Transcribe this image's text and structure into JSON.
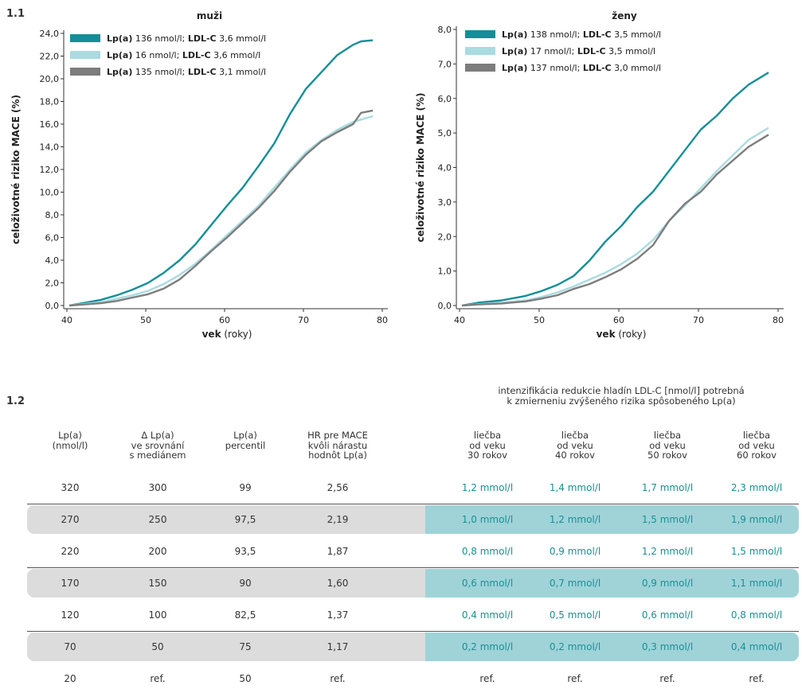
{
  "figure_labels": {
    "part1": "1.1",
    "part2": "1.2"
  },
  "chart_data": [
    {
      "type": "line",
      "title": "muži",
      "xlabel_bold": "vek",
      "xlabel_rest": " (roky)",
      "ylabel": "celoživotné riziko MACE (%)",
      "xlim": [
        40,
        80
      ],
      "ylim": [
        0,
        24
      ],
      "x_ticks": [
        "40",
        "50",
        "60",
        "70",
        "80"
      ],
      "y_ticks": [
        "0,0",
        "2,0",
        "4,0",
        "6,0",
        "8,0",
        "10,0",
        "12,0",
        "14,0",
        "16,0",
        "18,0",
        "20,0",
        "22,0",
        "24,0"
      ],
      "legend_position": "top-left",
      "legend": [
        {
          "lpa_label": "Lp(a)",
          "lpa_value": " 136 nmol/l; ",
          "ldl_label": "LDL-C",
          "ldl_value": " 3,6 mmol/l"
        },
        {
          "lpa_label": "Lp(a)",
          "lpa_value": " 16 nmol/l; ",
          "ldl_label": "LDL-C",
          "ldl_value": " 3,6 mmol/l"
        },
        {
          "lpa_label": "Lp(a)",
          "lpa_value": " 135 nmol/l; ",
          "ldl_label": "LDL-C",
          "ldl_value": " 3,1 mmol/l"
        }
      ],
      "series": [
        {
          "color": "#138f98",
          "x": [
            40,
            44,
            46,
            48,
            50,
            52,
            54,
            56,
            58,
            60,
            62,
            64,
            66,
            68,
            70,
            72,
            74,
            76,
            77,
            78.5
          ],
          "y": [
            0,
            0.5,
            0.9,
            1.4,
            2.0,
            2.9,
            4.0,
            5.4,
            7.1,
            8.8,
            10.4,
            12.3,
            14.3,
            16.9,
            19.1,
            20.6,
            22.1,
            23.0,
            23.3,
            23.4
          ]
        },
        {
          "color": "#a9dbe0",
          "x": [
            40,
            44,
            46,
            48,
            50,
            52,
            54,
            56,
            58,
            60,
            62,
            64,
            66,
            68,
            70,
            72,
            74,
            76,
            78.5
          ],
          "y": [
            0,
            0.3,
            0.6,
            0.9,
            1.3,
            1.9,
            2.7,
            3.7,
            4.9,
            6.2,
            7.5,
            8.8,
            10.4,
            12.0,
            13.5,
            14.6,
            15.5,
            16.2,
            16.7
          ]
        },
        {
          "color": "#7d7d7d",
          "x": [
            40,
            44,
            46,
            48,
            50,
            52,
            54,
            56,
            58,
            60,
            62,
            64,
            66,
            68,
            70,
            72,
            74,
            76,
            77,
            78.5
          ],
          "y": [
            0,
            0.2,
            0.4,
            0.7,
            1.0,
            1.5,
            2.3,
            3.5,
            4.8,
            6.0,
            7.3,
            8.6,
            10.1,
            11.8,
            13.3,
            14.5,
            15.3,
            16.0,
            17.0,
            17.2
          ]
        }
      ]
    },
    {
      "type": "line",
      "title": "ženy",
      "xlabel_bold": "vek",
      "xlabel_rest": " (roky)",
      "ylabel": "celoživotné riziko MACE (%)",
      "xlim": [
        40,
        80
      ],
      "ylim": [
        0,
        8
      ],
      "x_ticks": [
        "40",
        "50",
        "60",
        "70",
        "80"
      ],
      "y_ticks": [
        "0,0",
        "1,0",
        "2,0",
        "3,0",
        "4,0",
        "5,0",
        "6,0",
        "7,0",
        "8,0"
      ],
      "legend_position": "top-left",
      "legend": [
        {
          "lpa_label": "Lp(a)",
          "lpa_value": " 138 nmol/l; ",
          "ldl_label": "LDL-C",
          "ldl_value": " 3,5 mmol/l"
        },
        {
          "lpa_label": "Lp(a)",
          "lpa_value": " 17 nmol/l; ",
          "ldl_label": "LDL-C",
          "ldl_value": " 3,5 mmol/l"
        },
        {
          "lpa_label": "Lp(a)",
          "lpa_value": " 137 nmol/l; ",
          "ldl_label": "LDL-C",
          "ldl_value": " 3,0 mmol/l"
        }
      ],
      "series": [
        {
          "color": "#138f98",
          "x": [
            40,
            42,
            45,
            48,
            50,
            52,
            54,
            56,
            58,
            60,
            62,
            64,
            66,
            68,
            70,
            72,
            74,
            76,
            78.5
          ],
          "y": [
            0,
            0.08,
            0.15,
            0.28,
            0.42,
            0.6,
            0.85,
            1.3,
            1.85,
            2.3,
            2.85,
            3.3,
            3.9,
            4.5,
            5.1,
            5.5,
            6.0,
            6.4,
            6.75
          ]
        },
        {
          "color": "#a9dbe0",
          "x": [
            40,
            42,
            45,
            48,
            50,
            52,
            54,
            56,
            58,
            60,
            62,
            64,
            66,
            68,
            70,
            72,
            74,
            76,
            78.5
          ],
          "y": [
            0,
            0.04,
            0.08,
            0.15,
            0.25,
            0.38,
            0.55,
            0.75,
            0.95,
            1.2,
            1.5,
            1.9,
            2.45,
            2.9,
            3.4,
            3.9,
            4.35,
            4.8,
            5.15
          ]
        },
        {
          "color": "#7d7d7d",
          "x": [
            40,
            42,
            45,
            48,
            50,
            52,
            54,
            56,
            58,
            60,
            62,
            64,
            66,
            68,
            70,
            72,
            74,
            76,
            78.5
          ],
          "y": [
            0,
            0.03,
            0.06,
            0.12,
            0.2,
            0.3,
            0.48,
            0.62,
            0.82,
            1.05,
            1.35,
            1.75,
            2.45,
            2.95,
            3.3,
            3.8,
            4.2,
            4.6,
            4.95
          ]
        }
      ]
    }
  ],
  "table": {
    "caption_line1": "intenzifikácia redukcie hladín LDL-C  [nmol/l] potrebná",
    "caption_line2": "k zmierneniu zvýšeného rizika spôsobeného Lp(a)",
    "headers": [
      [
        "Lp(a)",
        "(nmol/l)"
      ],
      [
        "Δ Lp(a)",
        "ve srovnání",
        "s mediánem"
      ],
      [
        "Lp(a)",
        "percentil"
      ],
      [
        "HR pre MACE",
        "kvôli nárastu",
        "hodnôt Lp(a)"
      ],
      [
        "liečba",
        "od veku",
        "30 rokov"
      ],
      [
        "liečba",
        "od veku",
        "40 rokov"
      ],
      [
        "liečba",
        "od veku",
        "50 rokov"
      ],
      [
        "liečba",
        "od veku",
        "60 rokov"
      ]
    ],
    "rows": [
      [
        "320",
        "300",
        "99",
        "2,56",
        "1,2 mmol/l",
        "1,4 mmol/l",
        "1,7 mmol/l",
        "2,3 mmol/l"
      ],
      [
        "270",
        "250",
        "97,5",
        "2,19",
        "1,0 mmol/l",
        "1,2 mmol/l",
        "1,5 mmol/l",
        "1,9 mmol/l"
      ],
      [
        "220",
        "200",
        "93,5",
        "1,87",
        "0,8 mmol/l",
        "0,9 mmol/l",
        "1,2 mmol/l",
        "1,5 mmol/l"
      ],
      [
        "170",
        "150",
        "90",
        "1,60",
        "0,6 mmol/l",
        "0,7 mmol/l",
        "0,9 mmol/l",
        "1,1 mmol/l"
      ],
      [
        "120",
        "100",
        "82,5",
        "1,37",
        "0,4 mmol/l",
        "0,5 mmol/l",
        "0,6 mmol/l",
        "0,8 mmol/l"
      ],
      [
        "70",
        "50",
        "75",
        "1,17",
        "0,2 mmol/l",
        "0,2 mmol/l",
        "0,3 mmol/l",
        "0,4 mmol/l"
      ],
      [
        "20",
        "ref.",
        "50",
        "ref.",
        "ref.",
        "ref.",
        "ref.",
        "ref."
      ]
    ]
  }
}
